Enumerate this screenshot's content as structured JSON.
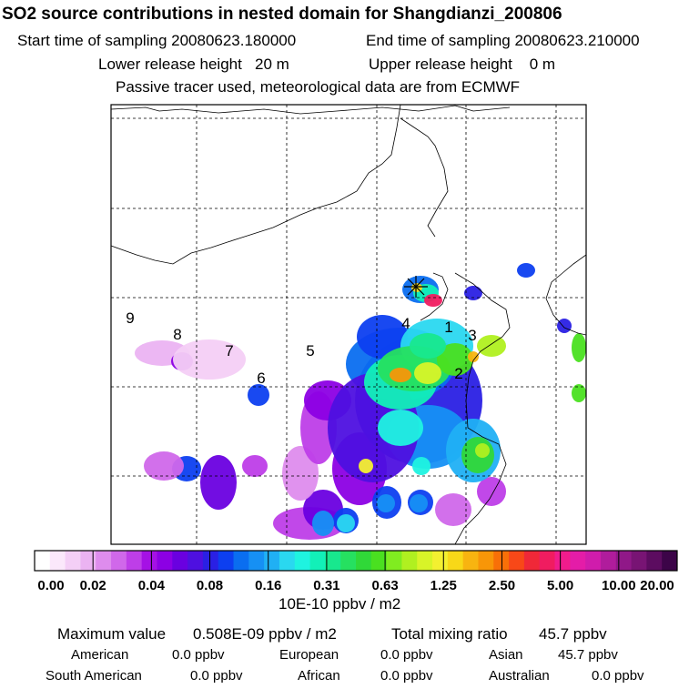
{
  "header": {
    "title": "SO2 source contributions in nested domain for Shangdianzi_200806",
    "start_label": "Start time of sampling 20080623.180000",
    "end_label": "End time of sampling 20080623.210000",
    "lower_label": "Lower release height   20 m",
    "upper_label": "Upper release height    0 m",
    "tracer_label": "Passive tracer used, meteorological data are from ECMWF"
  },
  "chart_data": {
    "type": "heatmap",
    "title": "SO2 source contributions in nested domain for Shangdianzi_200806",
    "region_labels": [
      "1",
      "2",
      "3",
      "4",
      "5",
      "6",
      "7",
      "8",
      "9"
    ],
    "colorbar": {
      "tick_labels": [
        "0.00",
        "0.02",
        "0.04",
        "0.08",
        "0.16",
        "0.31",
        "0.63",
        "1.25",
        "2.50",
        "5.00",
        "10.00",
        "20.00"
      ],
      "unit": "10E-10 ppbv / m2",
      "colors": [
        "#ffffff",
        "#fbe8fb",
        "#f4cff6",
        "#ebb3f2",
        "#de8ced",
        "#d068ea",
        "#be3ee8",
        "#a511e5",
        "#8c00e4",
        "#6a00e0",
        "#4e10e0",
        "#2a20e4",
        "#0d3ff0",
        "#0a6ef0",
        "#1690f4",
        "#20b0f4",
        "#2ad8f0",
        "#1ff3e0",
        "#12f0b8",
        "#18e88e",
        "#26e060",
        "#30d838",
        "#4ae020",
        "#80ec20",
        "#b0f020",
        "#d8f428",
        "#f4f030",
        "#f8d818",
        "#f8b410",
        "#f89608",
        "#f87008",
        "#f84818",
        "#f02838",
        "#f01c60",
        "#f01c8c",
        "#e41ca8",
        "#d01cac",
        "#b01c9c",
        "#901888",
        "#781474",
        "#5c0c60",
        "#3c0448"
      ]
    },
    "stats": {
      "max_label": "Maximum value",
      "max_value": "0.508E-09 ppbv / m2",
      "total_label": "Total mixing ratio",
      "total_value": "45.7 ppbv",
      "regions": [
        {
          "name": "American",
          "value": "0.0 ppbv"
        },
        {
          "name": "European",
          "value": "0.0 ppbv"
        },
        {
          "name": "Asian",
          "value": "45.7 ppbv"
        },
        {
          "name": "South American",
          "value": "0.0 ppbv"
        },
        {
          "name": "African",
          "value": "0.0 ppbv"
        },
        {
          "name": "Australian",
          "value": "0.0 ppbv"
        }
      ]
    }
  }
}
